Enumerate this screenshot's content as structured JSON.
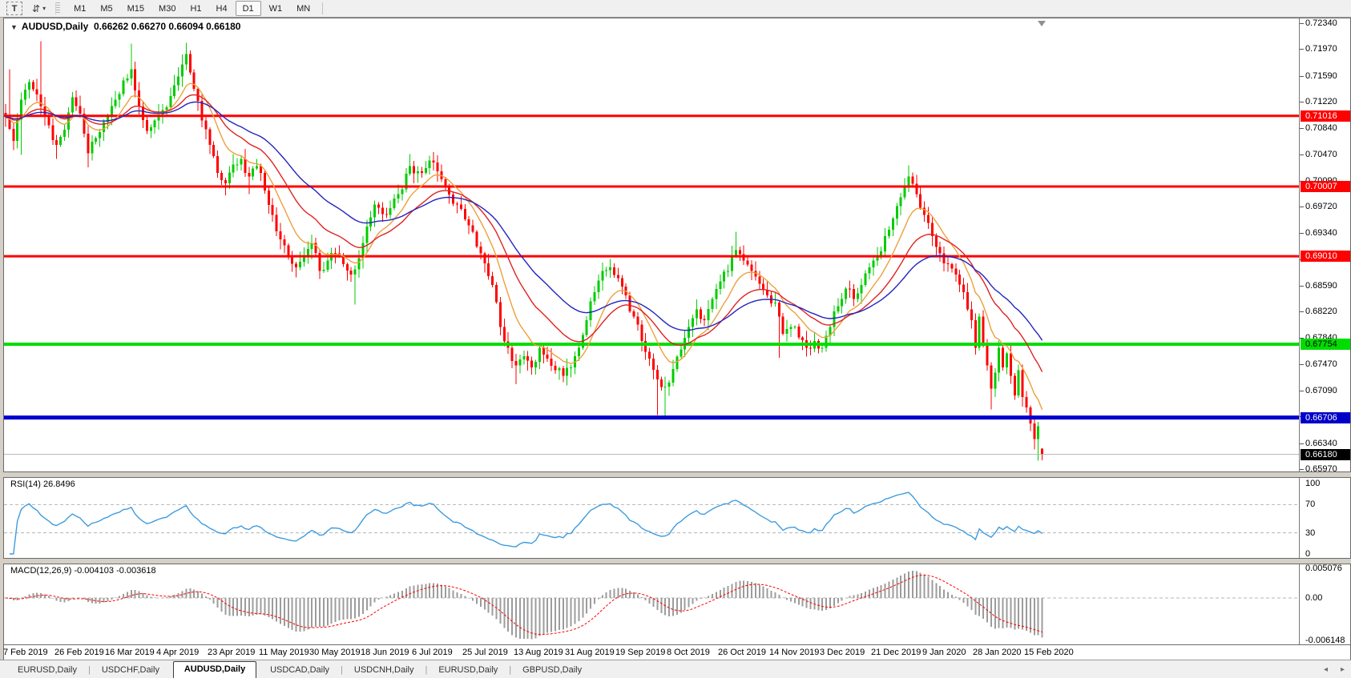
{
  "toolbar": {
    "tools": [
      {
        "name": "text-tool",
        "glyph": "T"
      },
      {
        "name": "arrange-tool",
        "glyph": "⇵",
        "caret": "▾"
      }
    ],
    "timeframes": [
      "M1",
      "M5",
      "M15",
      "M30",
      "H1",
      "H4",
      "D1",
      "W1",
      "MN"
    ],
    "active_timeframe": "D1"
  },
  "chart": {
    "dropdown_arrow": "▼",
    "symbol_title": "AUDUSD,Daily",
    "ohlc_display": "0.66262 0.66270 0.66094 0.66180",
    "y_ticks": [
      "0.72340",
      "0.71970",
      "0.71590",
      "0.71220",
      "0.70840",
      "0.70470",
      "0.70090",
      "0.69720",
      "0.69340",
      "0.68970",
      "0.68590",
      "0.68220",
      "0.67840",
      "0.67470",
      "0.67090",
      "0.66720",
      "0.66340",
      "0.65970"
    ]
  },
  "rsi_panel": {
    "label": "RSI(14) 26.8496",
    "period": 14,
    "value": 26.8496,
    "level_labels": [
      "100",
      "70",
      "30",
      "0"
    ],
    "dashed_levels": [
      70,
      30
    ],
    "line_color": "#3E9CDE"
  },
  "macd_panel": {
    "label": "MACD(12,26,9) -0.004103 -0.003618",
    "macd_value": -0.004103,
    "signal_value": -0.003618,
    "axis_labels": [
      "0.005076",
      "0.00",
      "-0.006148"
    ],
    "histogram_color": "#9C9C9C",
    "signal_color": "#FF0000"
  },
  "tabs": {
    "items": [
      "EURUSD,Daily",
      "USDCHF,Daily",
      "AUDUSD,Daily",
      "USDCAD,Daily",
      "USDCNH,Daily",
      "EURUSD,Daily",
      "GBPUSD,Daily"
    ],
    "active_index": 2,
    "left_arrow": "◂",
    "right_arrow": "▸"
  },
  "chart_data": {
    "type": "candlestick",
    "symbol": "AUDUSD",
    "timeframe": "Daily",
    "title": "AUDUSD,Daily",
    "last_candle": {
      "open": 0.66262,
      "high": 0.6627,
      "low": 0.66094,
      "close": 0.6618
    },
    "num_candles": 265,
    "price_range": {
      "top": 0.7234,
      "bottom": 0.6597
    },
    "up_color": "#00CC00",
    "down_color": "#FF0000",
    "x_ticks": [
      "7 Feb 2019",
      "26 Feb 2019",
      "16 Mar 2019",
      "4 Apr 2019",
      "23 Apr 2019",
      "11 May 2019",
      "30 May 2019",
      "18 Jun 2019",
      "6 Jul 2019",
      "25 Jul 2019",
      "13 Aug 2019",
      "31 Aug 2019",
      "19 Sep 2019",
      "8 Oct 2019",
      "26 Oct 2019",
      "14 Nov 2019",
      "3 Dec 2019",
      "21 Dec 2019",
      "9 Jan 2020",
      "28 Jan 2020",
      "15 Feb 2020"
    ],
    "close_anchors": [
      [
        0,
        0.71
      ],
      [
        2,
        0.7066
      ],
      [
        4,
        0.7125
      ],
      [
        6,
        0.715
      ],
      [
        9,
        0.7115
      ],
      [
        11,
        0.7088
      ],
      [
        13,
        0.706
      ],
      [
        15,
        0.7082
      ],
      [
        17,
        0.7128
      ],
      [
        19,
        0.7105
      ],
      [
        21,
        0.7048
      ],
      [
        23,
        0.707
      ],
      [
        26,
        0.71
      ],
      [
        28,
        0.7125
      ],
      [
        30,
        0.7152
      ],
      [
        32,
        0.7168
      ],
      [
        34,
        0.7115
      ],
      [
        36,
        0.708
      ],
      [
        38,
        0.7095
      ],
      [
        40,
        0.711
      ],
      [
        42,
        0.713
      ],
      [
        44,
        0.7158
      ],
      [
        46,
        0.719
      ],
      [
        48,
        0.714
      ],
      [
        50,
        0.7095
      ],
      [
        52,
        0.706
      ],
      [
        54,
        0.702
      ],
      [
        56,
        0.7005
      ],
      [
        58,
        0.7032
      ],
      [
        60,
        0.704
      ],
      [
        62,
        0.7015
      ],
      [
        64,
        0.703
      ],
      [
        66,
        0.6995
      ],
      [
        68,
        0.696
      ],
      [
        70,
        0.6925
      ],
      [
        72,
        0.69
      ],
      [
        74,
        0.6885
      ],
      [
        76,
        0.69
      ],
      [
        78,
        0.692
      ],
      [
        80,
        0.688
      ],
      [
        82,
        0.6895
      ],
      [
        84,
        0.6905
      ],
      [
        86,
        0.689
      ],
      [
        88,
        0.6875
      ],
      [
        91,
        0.692
      ],
      [
        94,
        0.6975
      ],
      [
        97,
        0.696
      ],
      [
        100,
        0.699
      ],
      [
        103,
        0.703
      ],
      [
        106,
        0.702
      ],
      [
        109,
        0.7035
      ],
      [
        112,
        0.7
      ],
      [
        115,
        0.6975
      ],
      [
        118,
        0.6945
      ],
      [
        121,
        0.6905
      ],
      [
        124,
        0.686
      ],
      [
        126,
        0.68
      ],
      [
        128,
        0.677
      ],
      [
        130,
        0.6745
      ],
      [
        132,
        0.6758
      ],
      [
        134,
        0.6742
      ],
      [
        136,
        0.677
      ],
      [
        138,
        0.6755
      ],
      [
        140,
        0.6738
      ],
      [
        142,
        0.673
      ],
      [
        144,
        0.6742
      ],
      [
        146,
        0.677
      ],
      [
        148,
        0.681
      ],
      [
        150,
        0.685
      ],
      [
        152,
        0.688
      ],
      [
        154,
        0.6885
      ],
      [
        156,
        0.687
      ],
      [
        158,
        0.6845
      ],
      [
        160,
        0.6815
      ],
      [
        162,
        0.678
      ],
      [
        164,
        0.6755
      ],
      [
        166,
        0.6725
      ],
      [
        168,
        0.6715
      ],
      [
        170,
        0.674
      ],
      [
        172,
        0.6768
      ],
      [
        174,
        0.68
      ],
      [
        176,
        0.6825
      ],
      [
        178,
        0.681
      ],
      [
        180,
        0.684
      ],
      [
        182,
        0.6865
      ],
      [
        184,
        0.688
      ],
      [
        186,
        0.691
      ],
      [
        188,
        0.6895
      ],
      [
        190,
        0.688
      ],
      [
        192,
        0.6862
      ],
      [
        194,
        0.6845
      ],
      [
        196,
        0.6835
      ],
      [
        198,
        0.679
      ],
      [
        200,
        0.68
      ],
      [
        202,
        0.6785
      ],
      [
        204,
        0.677
      ],
      [
        206,
        0.678
      ],
      [
        208,
        0.677
      ],
      [
        210,
        0.68
      ],
      [
        212,
        0.683
      ],
      [
        214,
        0.6855
      ],
      [
        216,
        0.684
      ],
      [
        218,
        0.686
      ],
      [
        220,
        0.6885
      ],
      [
        222,
        0.69
      ],
      [
        224,
        0.693
      ],
      [
        226,
        0.6955
      ],
      [
        228,
        0.6985
      ],
      [
        230,
        0.7015
      ],
      [
        232,
        0.699
      ],
      [
        234,
        0.696
      ],
      [
        236,
        0.693
      ],
      [
        238,
        0.6905
      ],
      [
        240,
        0.689
      ],
      [
        242,
        0.6875
      ],
      [
        244,
        0.685
      ],
      [
        246,
        0.681
      ],
      [
        247,
        0.677
      ],
      [
        248,
        0.6815
      ],
      [
        249,
        0.6775
      ],
      [
        250,
        0.6745
      ],
      [
        251,
        0.6712
      ],
      [
        252,
        0.6735
      ],
      [
        253,
        0.677
      ],
      [
        254,
        0.6742
      ],
      [
        255,
        0.6762
      ],
      [
        256,
        0.673
      ],
      [
        257,
        0.6702
      ],
      [
        258,
        0.6738
      ],
      [
        259,
        0.67
      ],
      [
        260,
        0.6685
      ],
      [
        261,
        0.6662
      ],
      [
        262,
        0.664
      ],
      [
        263,
        0.6658
      ],
      [
        264,
        0.6618
      ]
    ],
    "wick_overrides": {
      "1": {
        "high": 0.7168
      },
      "4": {
        "low": 0.7046
      },
      "9": {
        "high": 0.7208
      },
      "13": {
        "low": 0.704
      },
      "21": {
        "low": 0.7028
      },
      "32": {
        "high": 0.7205
      },
      "46": {
        "high": 0.7206
      },
      "47": {
        "high": 0.7195
      },
      "56": {
        "low": 0.6988
      },
      "62": {
        "low": 0.699
      },
      "89": {
        "low": 0.6832
      },
      "103": {
        "high": 0.7047
      },
      "130": {
        "low": 0.6718
      },
      "154": {
        "high": 0.6897
      },
      "166": {
        "low": 0.6674
      },
      "168": {
        "low": 0.6672
      },
      "186": {
        "high": 0.6936
      },
      "197": {
        "low": 0.6756
      },
      "230": {
        "high": 0.7031
      },
      "251": {
        "low": 0.6682
      },
      "263": {
        "low": 0.6609
      },
      "264": {
        "open": 0.66262,
        "high": 0.6627,
        "low": 0.66094,
        "close": 0.6618
      }
    },
    "moving_averages": [
      {
        "name": "ma-fast",
        "type": "ema",
        "period": 10,
        "color": "#EDA03C"
      },
      {
        "name": "ma-mid",
        "type": "ema",
        "period": 22,
        "color": "#E02222"
      },
      {
        "name": "ma-slow",
        "type": "ema",
        "period": 40,
        "color": "#2424BE"
      }
    ],
    "hlines": [
      {
        "price": 0.71016,
        "color": "#FF0000",
        "width": 3,
        "label": "0.71016",
        "label_bg": "#FF0000",
        "label_color": "#FFFFFF"
      },
      {
        "price": 0.70007,
        "color": "#FF0000",
        "width": 3,
        "label": "0.70007",
        "label_bg": "#FF0000",
        "label_color": "#FFFFFF"
      },
      {
        "price": 0.6901,
        "color": "#FF0000",
        "width": 3,
        "label": "0.69010",
        "label_bg": "#FF0000",
        "label_color": "#FFFFFF"
      },
      {
        "price": 0.67754,
        "color": "#00DD00",
        "width": 4,
        "label": "0.67754",
        "label_bg": "#00DD00",
        "label_color": "#000000"
      },
      {
        "price": 0.66706,
        "color": "#0000D0",
        "width": 5,
        "label": "0.66706",
        "label_bg": "#0000C8",
        "label_color": "#FFFFFF"
      }
    ],
    "bid_line": {
      "price": 0.6618,
      "label": "0.66180",
      "line_color": "#B4B4B4",
      "label_bg": "#000000",
      "label_color": "#FFFFFF"
    },
    "shift_marker_color": "#909090"
  }
}
